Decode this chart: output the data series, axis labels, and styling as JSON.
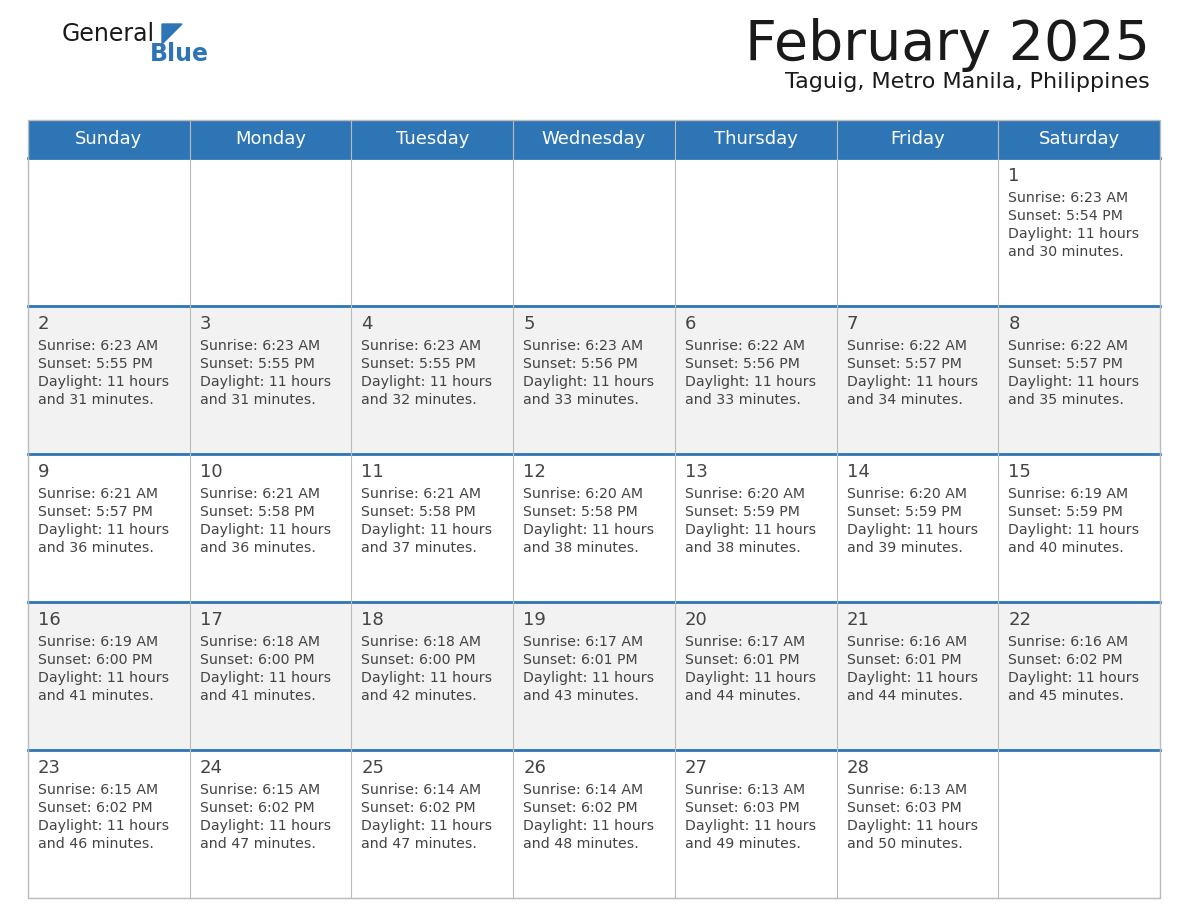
{
  "title": "February 2025",
  "subtitle": "Taguig, Metro Manila, Philippines",
  "header_bg": "#2E75B6",
  "header_text_color": "#FFFFFF",
  "row_bg_odd": "#FFFFFF",
  "row_bg_even": "#F2F2F2",
  "day_headers": [
    "Sunday",
    "Monday",
    "Tuesday",
    "Wednesday",
    "Thursday",
    "Friday",
    "Saturday"
  ],
  "calendar_data": [
    [
      null,
      null,
      null,
      null,
      null,
      null,
      {
        "day": 1,
        "sunrise": "6:23 AM",
        "sunset": "5:54 PM",
        "daylight_line1": "11 hours",
        "daylight_line2": "and 30 minutes."
      }
    ],
    [
      {
        "day": 2,
        "sunrise": "6:23 AM",
        "sunset": "5:55 PM",
        "daylight_line1": "11 hours",
        "daylight_line2": "and 31 minutes."
      },
      {
        "day": 3,
        "sunrise": "6:23 AM",
        "sunset": "5:55 PM",
        "daylight_line1": "11 hours",
        "daylight_line2": "and 31 minutes."
      },
      {
        "day": 4,
        "sunrise": "6:23 AM",
        "sunset": "5:55 PM",
        "daylight_line1": "11 hours",
        "daylight_line2": "and 32 minutes."
      },
      {
        "day": 5,
        "sunrise": "6:23 AM",
        "sunset": "5:56 PM",
        "daylight_line1": "11 hours",
        "daylight_line2": "and 33 minutes."
      },
      {
        "day": 6,
        "sunrise": "6:22 AM",
        "sunset": "5:56 PM",
        "daylight_line1": "11 hours",
        "daylight_line2": "and 33 minutes."
      },
      {
        "day": 7,
        "sunrise": "6:22 AM",
        "sunset": "5:57 PM",
        "daylight_line1": "11 hours",
        "daylight_line2": "and 34 minutes."
      },
      {
        "day": 8,
        "sunrise": "6:22 AM",
        "sunset": "5:57 PM",
        "daylight_line1": "11 hours",
        "daylight_line2": "and 35 minutes."
      }
    ],
    [
      {
        "day": 9,
        "sunrise": "6:21 AM",
        "sunset": "5:57 PM",
        "daylight_line1": "11 hours",
        "daylight_line2": "and 36 minutes."
      },
      {
        "day": 10,
        "sunrise": "6:21 AM",
        "sunset": "5:58 PM",
        "daylight_line1": "11 hours",
        "daylight_line2": "and 36 minutes."
      },
      {
        "day": 11,
        "sunrise": "6:21 AM",
        "sunset": "5:58 PM",
        "daylight_line1": "11 hours",
        "daylight_line2": "and 37 minutes."
      },
      {
        "day": 12,
        "sunrise": "6:20 AM",
        "sunset": "5:58 PM",
        "daylight_line1": "11 hours",
        "daylight_line2": "and 38 minutes."
      },
      {
        "day": 13,
        "sunrise": "6:20 AM",
        "sunset": "5:59 PM",
        "daylight_line1": "11 hours",
        "daylight_line2": "and 38 minutes."
      },
      {
        "day": 14,
        "sunrise": "6:20 AM",
        "sunset": "5:59 PM",
        "daylight_line1": "11 hours",
        "daylight_line2": "and 39 minutes."
      },
      {
        "day": 15,
        "sunrise": "6:19 AM",
        "sunset": "5:59 PM",
        "daylight_line1": "11 hours",
        "daylight_line2": "and 40 minutes."
      }
    ],
    [
      {
        "day": 16,
        "sunrise": "6:19 AM",
        "sunset": "6:00 PM",
        "daylight_line1": "11 hours",
        "daylight_line2": "and 41 minutes."
      },
      {
        "day": 17,
        "sunrise": "6:18 AM",
        "sunset": "6:00 PM",
        "daylight_line1": "11 hours",
        "daylight_line2": "and 41 minutes."
      },
      {
        "day": 18,
        "sunrise": "6:18 AM",
        "sunset": "6:00 PM",
        "daylight_line1": "11 hours",
        "daylight_line2": "and 42 minutes."
      },
      {
        "day": 19,
        "sunrise": "6:17 AM",
        "sunset": "6:01 PM",
        "daylight_line1": "11 hours",
        "daylight_line2": "and 43 minutes."
      },
      {
        "day": 20,
        "sunrise": "6:17 AM",
        "sunset": "6:01 PM",
        "daylight_line1": "11 hours",
        "daylight_line2": "and 44 minutes."
      },
      {
        "day": 21,
        "sunrise": "6:16 AM",
        "sunset": "6:01 PM",
        "daylight_line1": "11 hours",
        "daylight_line2": "and 44 minutes."
      },
      {
        "day": 22,
        "sunrise": "6:16 AM",
        "sunset": "6:02 PM",
        "daylight_line1": "11 hours",
        "daylight_line2": "and 45 minutes."
      }
    ],
    [
      {
        "day": 23,
        "sunrise": "6:15 AM",
        "sunset": "6:02 PM",
        "daylight_line1": "11 hours",
        "daylight_line2": "and 46 minutes."
      },
      {
        "day": 24,
        "sunrise": "6:15 AM",
        "sunset": "6:02 PM",
        "daylight_line1": "11 hours",
        "daylight_line2": "and 47 minutes."
      },
      {
        "day": 25,
        "sunrise": "6:14 AM",
        "sunset": "6:02 PM",
        "daylight_line1": "11 hours",
        "daylight_line2": "and 47 minutes."
      },
      {
        "day": 26,
        "sunrise": "6:14 AM",
        "sunset": "6:02 PM",
        "daylight_line1": "11 hours",
        "daylight_line2": "and 48 minutes."
      },
      {
        "day": 27,
        "sunrise": "6:13 AM",
        "sunset": "6:03 PM",
        "daylight_line1": "11 hours",
        "daylight_line2": "and 49 minutes."
      },
      {
        "day": 28,
        "sunrise": "6:13 AM",
        "sunset": "6:03 PM",
        "daylight_line1": "11 hours",
        "daylight_line2": "and 50 minutes."
      },
      null
    ]
  ],
  "logo_color_general": "#1a1a1a",
  "logo_color_blue": "#2E75B6",
  "title_color": "#1a1a1a",
  "subtitle_color": "#1a1a1a",
  "cell_text_color": "#444444",
  "separator_color": "#2E75B6",
  "grid_color": "#bbbbbb"
}
